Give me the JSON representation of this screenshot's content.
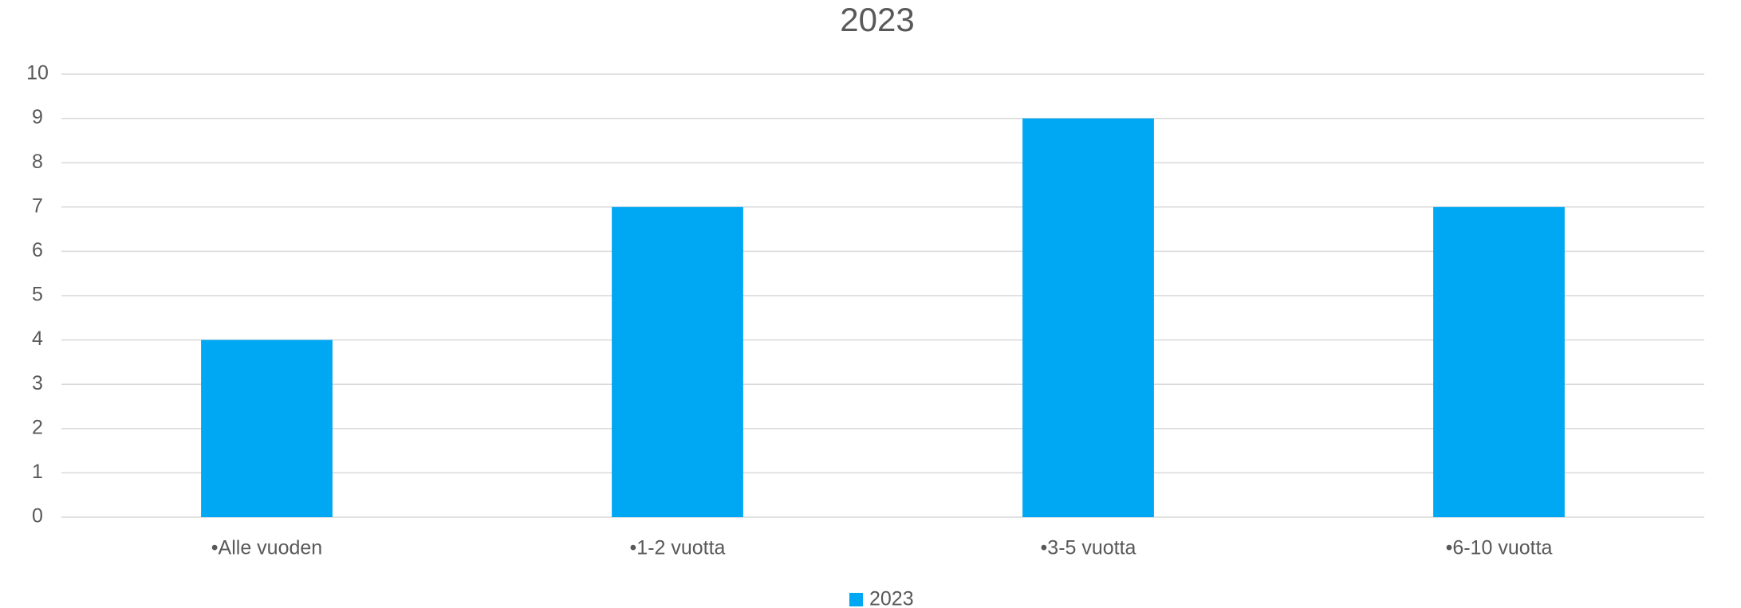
{
  "chart_data": {
    "type": "bar",
    "title": "2023",
    "categories": [
      "•Alle vuoden",
      "•1-2 vuotta",
      "•3-5 vuotta",
      "•6-10 vuotta"
    ],
    "series": [
      {
        "name": "2023",
        "color": "#00a8f3",
        "values": [
          4,
          7,
          9,
          7
        ]
      }
    ],
    "ylim": [
      0,
      10
    ],
    "yticks": [
      0,
      1,
      2,
      3,
      4,
      5,
      6,
      7,
      8,
      9,
      10
    ],
    "grid": true,
    "legend": "bottom"
  }
}
